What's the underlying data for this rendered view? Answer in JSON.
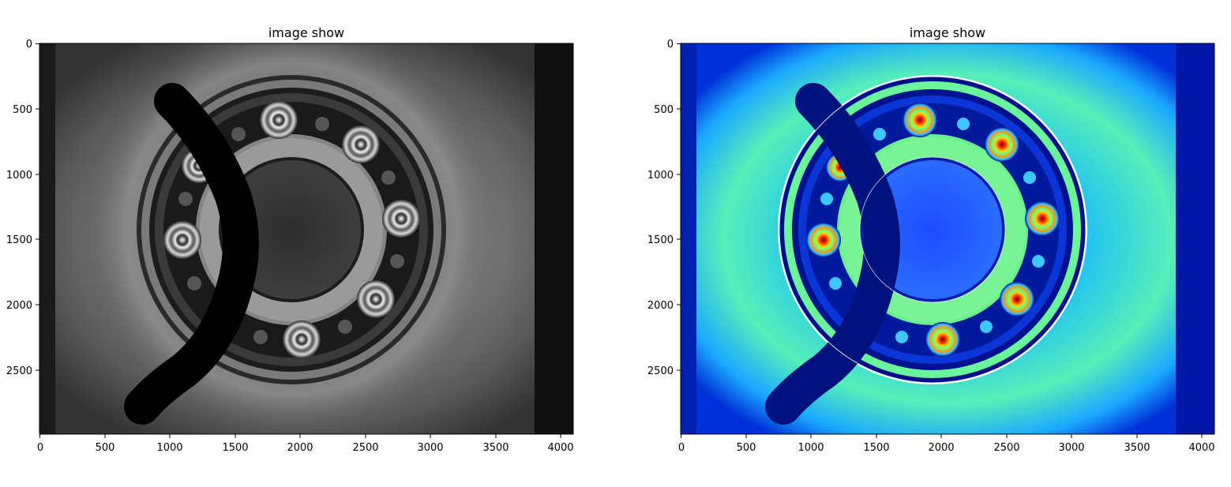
{
  "figure": {
    "left": {
      "title": "image show",
      "colormap": "gray",
      "x_ticks": [
        "0",
        "500",
        "1000",
        "1500",
        "2000",
        "2500",
        "3000",
        "3500",
        "4000"
      ],
      "y_ticks": [
        "0",
        "500",
        "1000",
        "1500",
        "2000",
        "2500"
      ]
    },
    "right": {
      "title": "image show",
      "colormap": "jet",
      "x_ticks": [
        "0",
        "500",
        "1000",
        "1500",
        "2000",
        "2500",
        "3000",
        "3500",
        "4000"
      ],
      "y_ticks": [
        "0",
        "500",
        "1000",
        "1500",
        "2000",
        "2500"
      ]
    }
  }
}
